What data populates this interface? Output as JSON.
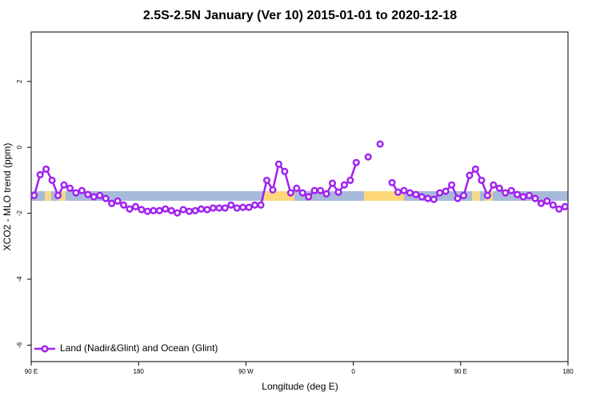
{
  "chart_data": {
    "type": "line",
    "title": "2.5S-2.5N January (Ver 10)   2015-01-01 to 2020-12-18",
    "x_label": "Longitude (deg E)",
    "y_label": "XCO2 - MLO trend (ppm)",
    "x": [
      92.5,
      97.5,
      102.5,
      107.5,
      112.5,
      117.5,
      122.5,
      127.5,
      132.5,
      137.5,
      142.5,
      147.5,
      152.5,
      157.5,
      162.5,
      167.5,
      172.5,
      177.5,
      182.5,
      187.5,
      192.5,
      197.5,
      202.5,
      207.5,
      212.5,
      217.5,
      222.5,
      227.5,
      232.5,
      237.5,
      242.5,
      247.5,
      252.5,
      257.5,
      262.5,
      267.5,
      272.5,
      277.5,
      282.5,
      287.5,
      292.5,
      297.5,
      302.5,
      307.5,
      312.5,
      317.5,
      322.5,
      327.5,
      332.5,
      337.5,
      342.5,
      347.5,
      352.5,
      357.5,
      362.5,
      367.5,
      372.5,
      377.5,
      382.5,
      387.5,
      392.5,
      397.5,
      402.5,
      407.5,
      412.5,
      417.5,
      422.5,
      427.5,
      432.5,
      437.5,
      442.5,
      447.5,
      452.5,
      457.5,
      462.5,
      467.5,
      472.5,
      477.5,
      482.5,
      487.5,
      492.5,
      497.5,
      502.5,
      507.5,
      512.5,
      517.5,
      522.5,
      527.5,
      532.5,
      537.5
    ],
    "series": [
      {
        "name": "Land (Nadir&Glint) and Ocean (Glint)",
        "color": "#a020f0",
        "values": [
          -1.46,
          -0.83,
          -0.66,
          -1.0,
          -1.46,
          -1.14,
          -1.24,
          -1.38,
          -1.31,
          -1.43,
          -1.5,
          -1.46,
          -1.55,
          -1.7,
          -1.63,
          -1.75,
          -1.87,
          -1.8,
          -1.89,
          -1.94,
          -1.92,
          -1.92,
          -1.87,
          -1.92,
          -1.99,
          -1.89,
          -1.94,
          -1.92,
          -1.87,
          -1.89,
          -1.84,
          -1.84,
          -1.84,
          -1.75,
          -1.84,
          -1.82,
          -1.82,
          -1.75,
          -1.75,
          -1.0,
          -1.29,
          -0.51,
          -0.73,
          -1.38,
          -1.24,
          -1.38,
          -1.5,
          -1.31,
          -1.31,
          -1.41,
          -1.09,
          -1.36,
          -1.14,
          -1.0,
          -0.46,
          null,
          -0.29,
          null,
          0.1,
          null,
          -1.07,
          -1.36,
          -1.31,
          -1.38,
          -1.43,
          -1.5,
          -1.55,
          -1.58,
          -1.38,
          -1.33,
          -1.14,
          -1.55,
          -1.46,
          -0.85,
          -0.66,
          -1.0,
          -1.46,
          -1.14,
          -1.24,
          -1.38,
          -1.31,
          -1.43,
          -1.5,
          -1.46,
          -1.55,
          -1.7,
          -1.63,
          -1.75,
          -1.87,
          -1.8
        ]
      }
    ],
    "xlim": [
      90,
      540
    ],
    "xticks": [
      {
        "value": 90,
        "label": "90 E"
      },
      180,
      {
        "value": 270,
        "label": "90 W"
      },
      {
        "value": 360,
        "label": "0"
      },
      {
        "value": 450,
        "label": "90 E"
      },
      {
        "value": 540,
        "label": "180"
      }
    ],
    "ylim": [
      -6.5,
      3.5
    ],
    "yticks": [
      -6,
      -4,
      -2,
      0,
      2
    ],
    "legend": "bottomleft"
  }
}
